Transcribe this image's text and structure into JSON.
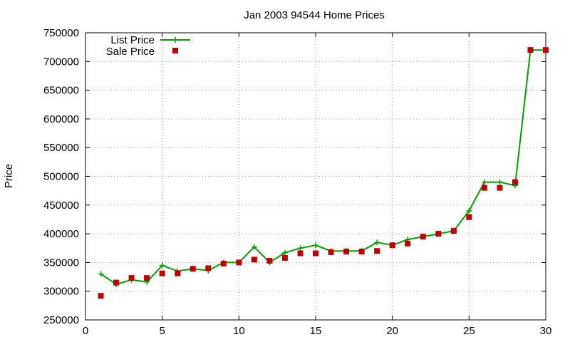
{
  "chart_data": {
    "type": "line",
    "title": "Jan 2003 94544 Home Prices",
    "xlabel": "",
    "ylabel": "Price",
    "xlim": [
      0,
      30
    ],
    "ylim": [
      250000,
      750000
    ],
    "x_ticks": [
      0,
      5,
      10,
      15,
      20,
      25,
      30
    ],
    "y_ticks": [
      250000,
      300000,
      350000,
      400000,
      450000,
      500000,
      550000,
      600000,
      650000,
      700000,
      750000
    ],
    "grid": true,
    "legend_position": "top-left",
    "series": [
      {
        "name": "List Price",
        "style": "line-with-plus-markers",
        "color": "#00a000",
        "x": [
          1,
          2,
          3,
          4,
          5,
          6,
          7,
          8,
          9,
          10,
          11,
          12,
          13,
          14,
          15,
          16,
          17,
          18,
          19,
          20,
          21,
          22,
          23,
          24,
          25,
          26,
          27,
          28,
          29,
          30
        ],
        "values": [
          330000,
          312000,
          320000,
          316000,
          345000,
          335000,
          339000,
          336000,
          350000,
          350000,
          377000,
          350000,
          367000,
          375000,
          380000,
          370000,
          370000,
          370000,
          385000,
          380000,
          390000,
          395000,
          400000,
          405000,
          440000,
          490000,
          490000,
          484000,
          720000,
          720000
        ]
      },
      {
        "name": "Sale Price",
        "style": "square-markers",
        "color": "#c00000",
        "x": [
          1,
          2,
          3,
          4,
          5,
          6,
          7,
          8,
          9,
          10,
          11,
          12,
          13,
          14,
          15,
          16,
          17,
          18,
          19,
          20,
          21,
          22,
          23,
          24,
          25,
          26,
          27,
          28,
          29,
          30
        ],
        "values": [
          292000,
          315000,
          323000,
          323000,
          331000,
          331000,
          339000,
          340000,
          348000,
          350000,
          355000,
          353000,
          358000,
          366000,
          366000,
          368000,
          369000,
          369000,
          370000,
          380000,
          383000,
          395000,
          400000,
          405000,
          429000,
          480000,
          480000,
          490000,
          720000,
          720000
        ]
      }
    ]
  }
}
